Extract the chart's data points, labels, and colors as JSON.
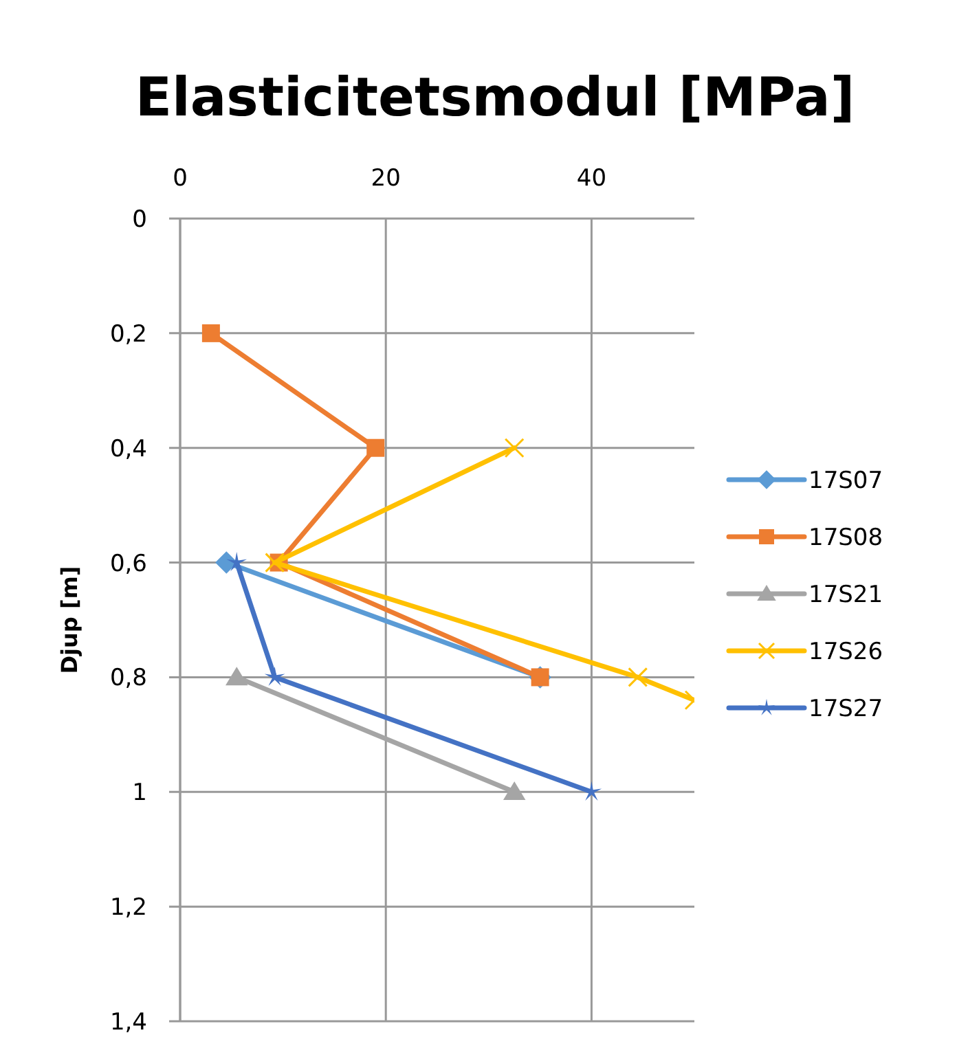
{
  "chart_data": {
    "type": "line",
    "title": "Elasticitetsmodul [MPa]",
    "ylabel": "Djup [m]",
    "xlim": [
      0,
      50
    ],
    "xticks": [
      0,
      20,
      40
    ],
    "ylim": [
      1.4,
      0
    ],
    "yticks": [
      0,
      {
        "value": 0.2,
        "label": "0,2"
      },
      {
        "value": 0.4,
        "label": "0,4"
      },
      {
        "value": 0.6,
        "label": "0,6"
      },
      {
        "value": 0.8,
        "label": "0,8"
      },
      1,
      {
        "value": 1.2,
        "label": "1,2"
      },
      {
        "value": 1.4,
        "label": "1,4"
      }
    ],
    "grid": true,
    "legend": "right",
    "series": [
      {
        "name": "17S07",
        "color": "#5b9bd5",
        "marker": "diamond",
        "x": [
          4.5,
          35
        ],
        "values": [
          0.6,
          0.8
        ]
      },
      {
        "name": "17S08",
        "color": "#ed7d31",
        "marker": "square",
        "x": [
          3,
          19,
          9.6,
          35
        ],
        "values": [
          0.2,
          0.4,
          0.6,
          0.8
        ]
      },
      {
        "name": "17S21",
        "color": "#a5a5a5",
        "marker": "triangle",
        "x": [
          5.5,
          32.5
        ],
        "values": [
          0.8,
          1.0
        ]
      },
      {
        "name": "17S26",
        "color": "#ffc000",
        "marker": "cross",
        "x": [
          32.5,
          9.2,
          44.5,
          50
        ],
        "values": [
          0.4,
          0.6,
          0.8,
          0.84
        ]
      },
      {
        "name": "17S27",
        "color": "#4472c4",
        "marker": "star",
        "x": [
          5.5,
          9.2,
          40
        ],
        "values": [
          0.6,
          0.8,
          1.0
        ]
      }
    ]
  }
}
